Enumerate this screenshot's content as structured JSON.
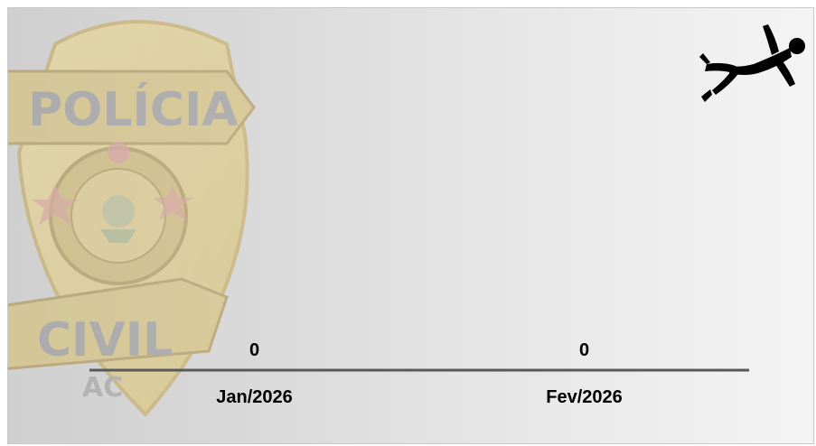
{
  "badge": {
    "top_text": "POLÍCIA",
    "bottom_text": "CIVIL",
    "state": "AC",
    "colors": {
      "fill": "#e8cf7a",
      "shadow": "#b39a45"
    }
  },
  "icon": {
    "name": "fallen-person-icon",
    "color": "#000000"
  },
  "chart_data": {
    "type": "bar",
    "categories": [
      "Jan/2026",
      "Fev/2026"
    ],
    "values": [
      0,
      0
    ],
    "data_labels": [
      "0",
      "0"
    ],
    "ylim": [
      0,
      10
    ],
    "grid": false,
    "title": "",
    "xlabel": "",
    "ylabel": "",
    "colors": {
      "axis": "#595959",
      "labels": "#000000"
    }
  }
}
